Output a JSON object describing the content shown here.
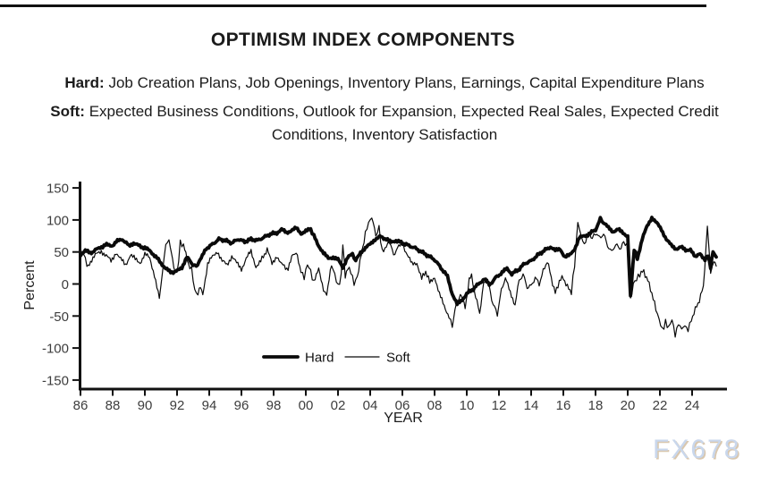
{
  "page": {
    "watermark": "FX678"
  },
  "header": {
    "title": "OPTIMISM INDEX COMPONENTS",
    "hard_label": "Hard:",
    "hard_text": "Job Creation Plans, Job Openings, Inventory Plans, Earnings, Capital Expenditure Plans",
    "soft_label": "Soft:",
    "soft_text": "Expected Business Conditions, Outlook for Expansion, Expected Real Sales, Expected Credit Conditions, Inventory Satisfaction"
  },
  "chart_data": {
    "type": "line",
    "title": "",
    "xlabel": "YEAR",
    "ylabel": "Percent",
    "ylim": [
      -150,
      150
    ],
    "yticks": [
      150,
      100,
      50,
      0,
      -50,
      -100,
      -150
    ],
    "xtick_labels": [
      "86",
      "88",
      "90",
      "92",
      "94",
      "96",
      "98",
      "00",
      "02",
      "04",
      "06",
      "08",
      "10",
      "12",
      "14",
      "16",
      "18",
      "20",
      "22",
      "24"
    ],
    "xtick_start_year": 1986,
    "xtick_step_years": 2,
    "x_range": [
      1986,
      2025.5
    ],
    "grid": false,
    "legend_position": "inside-bottom-center",
    "line_color": "#0a0a0a",
    "series": [
      {
        "name": "Hard",
        "stroke_width": 3.8,
        "noise_amplitude": 2.5,
        "points": [
          [
            1986.0,
            46
          ],
          [
            1986.3,
            52
          ],
          [
            1986.6,
            48
          ],
          [
            1987.0,
            54
          ],
          [
            1987.3,
            58
          ],
          [
            1987.7,
            62
          ],
          [
            1988.0,
            60
          ],
          [
            1988.3,
            67
          ],
          [
            1988.6,
            70
          ],
          [
            1989.0,
            60
          ],
          [
            1989.3,
            64
          ],
          [
            1989.6,
            60
          ],
          [
            1990.0,
            56
          ],
          [
            1990.3,
            52
          ],
          [
            1990.6,
            45
          ],
          [
            1991.0,
            33
          ],
          [
            1991.3,
            24
          ],
          [
            1991.6,
            18
          ],
          [
            1992.0,
            20
          ],
          [
            1992.3,
            26
          ],
          [
            1992.6,
            42
          ],
          [
            1993.0,
            30
          ],
          [
            1993.2,
            28
          ],
          [
            1993.5,
            40
          ],
          [
            1993.8,
            55
          ],
          [
            1994.2,
            62
          ],
          [
            1994.6,
            70
          ],
          [
            1995.0,
            68
          ],
          [
            1995.4,
            64
          ],
          [
            1995.8,
            70
          ],
          [
            1996.2,
            66
          ],
          [
            1996.6,
            70
          ],
          [
            1997.0,
            68
          ],
          [
            1997.4,
            73
          ],
          [
            1997.8,
            78
          ],
          [
            1998.2,
            80
          ],
          [
            1998.5,
            85
          ],
          [
            1998.8,
            80
          ],
          [
            1999.1,
            84
          ],
          [
            1999.4,
            87
          ],
          [
            1999.7,
            79
          ],
          [
            2000.0,
            83
          ],
          [
            2000.3,
            85
          ],
          [
            2000.5,
            75
          ],
          [
            2000.8,
            60
          ],
          [
            2001.1,
            48
          ],
          [
            2001.4,
            40
          ],
          [
            2001.7,
            42
          ],
          [
            2002.0,
            38
          ],
          [
            2002.3,
            26
          ],
          [
            2002.6,
            42
          ],
          [
            2002.9,
            46
          ],
          [
            2003.1,
            36
          ],
          [
            2003.4,
            50
          ],
          [
            2003.7,
            56
          ],
          [
            2004.0,
            62
          ],
          [
            2004.3,
            70
          ],
          [
            2004.6,
            74
          ],
          [
            2005.0,
            70
          ],
          [
            2005.3,
            65
          ],
          [
            2005.6,
            68
          ],
          [
            2006.0,
            64
          ],
          [
            2006.4,
            60
          ],
          [
            2006.8,
            56
          ],
          [
            2007.2,
            50
          ],
          [
            2007.6,
            44
          ],
          [
            2008.0,
            38
          ],
          [
            2008.4,
            25
          ],
          [
            2008.8,
            12
          ],
          [
            2009.1,
            -15
          ],
          [
            2009.4,
            -32
          ],
          [
            2009.7,
            -25
          ],
          [
            2010.0,
            -15
          ],
          [
            2010.4,
            -8
          ],
          [
            2010.8,
            2
          ],
          [
            2011.1,
            8
          ],
          [
            2011.4,
            -2
          ],
          [
            2011.8,
            10
          ],
          [
            2012.2,
            18
          ],
          [
            2012.5,
            24
          ],
          [
            2012.8,
            16
          ],
          [
            2013.2,
            22
          ],
          [
            2013.6,
            32
          ],
          [
            2014.0,
            36
          ],
          [
            2014.4,
            45
          ],
          [
            2014.8,
            52
          ],
          [
            2015.2,
            58
          ],
          [
            2015.5,
            52
          ],
          [
            2015.8,
            55
          ],
          [
            2016.1,
            42
          ],
          [
            2016.4,
            45
          ],
          [
            2016.7,
            55
          ],
          [
            2017.0,
            72
          ],
          [
            2017.3,
            75
          ],
          [
            2017.6,
            78
          ],
          [
            2018.0,
            85
          ],
          [
            2018.3,
            102
          ],
          [
            2018.5,
            95
          ],
          [
            2018.8,
            88
          ],
          [
            2019.1,
            82
          ],
          [
            2019.4,
            85
          ],
          [
            2019.7,
            80
          ],
          [
            2020.0,
            75
          ],
          [
            2020.17,
            -20
          ],
          [
            2020.4,
            55
          ],
          [
            2020.6,
            40
          ],
          [
            2020.9,
            70
          ],
          [
            2021.2,
            90
          ],
          [
            2021.5,
            104
          ],
          [
            2021.8,
            95
          ],
          [
            2022.1,
            85
          ],
          [
            2022.4,
            70
          ],
          [
            2022.7,
            60
          ],
          [
            2023.0,
            55
          ],
          [
            2023.3,
            58
          ],
          [
            2023.6,
            52
          ],
          [
            2023.9,
            55
          ],
          [
            2024.2,
            41
          ],
          [
            2024.5,
            48
          ],
          [
            2024.8,
            38
          ],
          [
            2025.0,
            45
          ],
          [
            2025.15,
            25
          ],
          [
            2025.3,
            50
          ],
          [
            2025.5,
            42
          ]
        ]
      },
      {
        "name": "Soft",
        "stroke_width": 1.2,
        "noise_amplitude": 5,
        "points": [
          [
            1986.0,
            43
          ],
          [
            1986.2,
            50
          ],
          [
            1986.4,
            28
          ],
          [
            1986.7,
            38
          ],
          [
            1987.0,
            46
          ],
          [
            1987.3,
            52
          ],
          [
            1987.6,
            44
          ],
          [
            1987.9,
            35
          ],
          [
            1988.2,
            50
          ],
          [
            1988.5,
            38
          ],
          [
            1988.8,
            30
          ],
          [
            1989.1,
            46
          ],
          [
            1989.4,
            38
          ],
          [
            1989.7,
            34
          ],
          [
            1990.0,
            46
          ],
          [
            1990.3,
            40
          ],
          [
            1990.6,
            15
          ],
          [
            1990.9,
            -24
          ],
          [
            1991.1,
            20
          ],
          [
            1991.3,
            62
          ],
          [
            1991.5,
            68
          ],
          [
            1991.8,
            25
          ],
          [
            1992.0,
            15
          ],
          [
            1992.2,
            64
          ],
          [
            1992.4,
            60
          ],
          [
            1992.7,
            30
          ],
          [
            1992.9,
            24
          ],
          [
            1993.1,
            -10
          ],
          [
            1993.3,
            -17
          ],
          [
            1993.45,
            -5
          ],
          [
            1993.6,
            -15
          ],
          [
            1993.9,
            31
          ],
          [
            1994.2,
            42
          ],
          [
            1994.5,
            52
          ],
          [
            1994.8,
            35
          ],
          [
            1995.1,
            30
          ],
          [
            1995.4,
            44
          ],
          [
            1995.7,
            32
          ],
          [
            1996.0,
            24
          ],
          [
            1996.3,
            40
          ],
          [
            1996.6,
            50
          ],
          [
            1996.9,
            28
          ],
          [
            1997.2,
            35
          ],
          [
            1997.6,
            55
          ],
          [
            1997.9,
            30
          ],
          [
            1998.2,
            45
          ],
          [
            1998.5,
            30
          ],
          [
            1998.9,
            24
          ],
          [
            1999.2,
            45
          ],
          [
            1999.4,
            48
          ],
          [
            1999.7,
            20
          ],
          [
            1999.9,
            10
          ],
          [
            2000.1,
            31
          ],
          [
            2000.3,
            20
          ],
          [
            2000.5,
            1
          ],
          [
            2000.8,
            27
          ],
          [
            2001.1,
            -10
          ],
          [
            2001.3,
            -17
          ],
          [
            2001.6,
            29
          ],
          [
            2001.8,
            15
          ],
          [
            2002.0,
            -4
          ],
          [
            2002.2,
            12
          ],
          [
            2002.3,
            64
          ],
          [
            2002.45,
            14
          ],
          [
            2002.6,
            25
          ],
          [
            2002.8,
            20
          ],
          [
            2003.0,
            0
          ],
          [
            2003.2,
            12
          ],
          [
            2003.45,
            45
          ],
          [
            2003.7,
            80
          ],
          [
            2003.9,
            95
          ],
          [
            2004.1,
            105
          ],
          [
            2004.35,
            75
          ],
          [
            2004.55,
            88
          ],
          [
            2004.75,
            50
          ],
          [
            2005.0,
            60
          ],
          [
            2005.2,
            65
          ],
          [
            2005.45,
            46
          ],
          [
            2005.7,
            55
          ],
          [
            2006.0,
            64
          ],
          [
            2006.3,
            46
          ],
          [
            2006.6,
            30
          ],
          [
            2006.9,
            34
          ],
          [
            2007.2,
            8
          ],
          [
            2007.45,
            20
          ],
          [
            2007.7,
            2
          ],
          [
            2008.0,
            12
          ],
          [
            2008.3,
            -17
          ],
          [
            2008.6,
            -34
          ],
          [
            2008.9,
            -50
          ],
          [
            2009.1,
            -66
          ],
          [
            2009.35,
            -31
          ],
          [
            2009.6,
            -18
          ],
          [
            2009.9,
            -36
          ],
          [
            2010.15,
            5
          ],
          [
            2010.3,
            12
          ],
          [
            2010.55,
            -20
          ],
          [
            2010.8,
            -45
          ],
          [
            2011.05,
            0
          ],
          [
            2011.3,
            8
          ],
          [
            2011.55,
            -25
          ],
          [
            2011.9,
            -47
          ],
          [
            2012.15,
            -10
          ],
          [
            2012.4,
            10
          ],
          [
            2012.7,
            -15
          ],
          [
            2013.0,
            -31
          ],
          [
            2013.25,
            5
          ],
          [
            2013.5,
            15
          ],
          [
            2013.75,
            -5
          ],
          [
            2014.0,
            -3
          ],
          [
            2014.25,
            10
          ],
          [
            2014.5,
            0
          ],
          [
            2014.75,
            20
          ],
          [
            2015.0,
            36
          ],
          [
            2015.25,
            10
          ],
          [
            2015.5,
            -15
          ],
          [
            2015.75,
            5
          ],
          [
            2016.0,
            10
          ],
          [
            2016.25,
            -5
          ],
          [
            2016.5,
            -12
          ],
          [
            2016.7,
            30
          ],
          [
            2016.9,
            97
          ],
          [
            2017.1,
            75
          ],
          [
            2017.3,
            62
          ],
          [
            2017.55,
            80
          ],
          [
            2017.8,
            72
          ],
          [
            2018.0,
            80
          ],
          [
            2018.25,
            72
          ],
          [
            2018.5,
            78
          ],
          [
            2018.75,
            60
          ],
          [
            2019.0,
            50
          ],
          [
            2019.25,
            62
          ],
          [
            2019.5,
            55
          ],
          [
            2019.75,
            65
          ],
          [
            2019.95,
            60
          ],
          [
            2020.17,
            -25
          ],
          [
            2020.35,
            0
          ],
          [
            2020.55,
            8
          ],
          [
            2020.75,
            15
          ],
          [
            2021.0,
            20
          ],
          [
            2021.25,
            5
          ],
          [
            2021.5,
            -14
          ],
          [
            2021.75,
            -40
          ],
          [
            2021.95,
            -55
          ],
          [
            2022.15,
            -72
          ],
          [
            2022.35,
            -60
          ],
          [
            2022.55,
            -68
          ],
          [
            2022.75,
            -55
          ],
          [
            2022.95,
            -80
          ],
          [
            2023.15,
            -62
          ],
          [
            2023.35,
            -70
          ],
          [
            2023.55,
            -65
          ],
          [
            2023.75,
            -72
          ],
          [
            2023.95,
            -55
          ],
          [
            2024.2,
            -40
          ],
          [
            2024.45,
            -25
          ],
          [
            2024.7,
            -5
          ],
          [
            2024.95,
            90
          ],
          [
            2025.15,
            18
          ],
          [
            2025.35,
            35
          ],
          [
            2025.5,
            28
          ]
        ]
      }
    ]
  }
}
